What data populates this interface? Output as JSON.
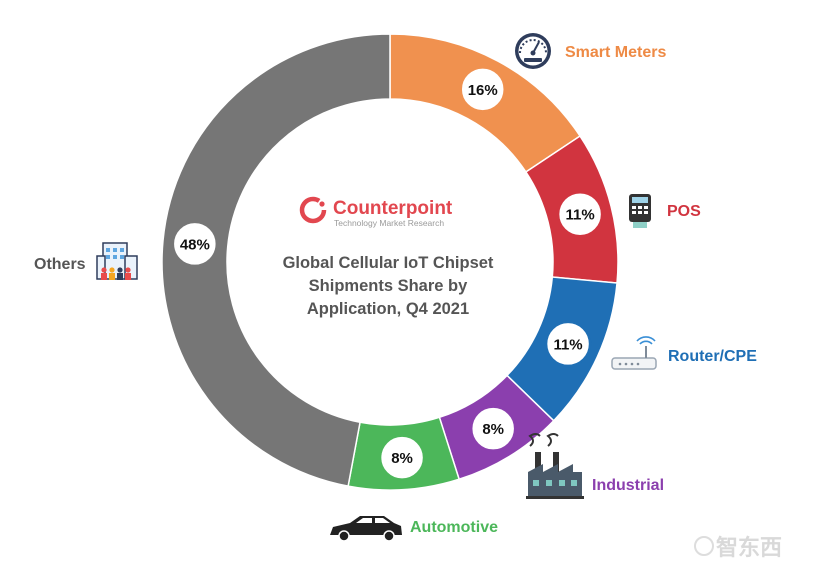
{
  "brand": {
    "name": "Counterpoint",
    "tagline": "Technology Market Research"
  },
  "watermark": {
    "text": "智东西"
  },
  "chart_data": {
    "type": "pie",
    "variant": "donut",
    "title": "Global Cellular IoT Chipset Shipments Share by Application, Q4 2021",
    "title_lines": [
      "Global Cellular IoT Chipset",
      "Shipments Share by",
      "Application, Q4 2021"
    ],
    "slices": [
      {
        "label": "Smart Meters",
        "value": 16,
        "value_label": "16%",
        "color": "#f0914f",
        "label_color": "#ee8a45",
        "icon": "speedometer-icon"
      },
      {
        "label": "POS",
        "value": 11,
        "value_label": "11%",
        "color": "#d1343f",
        "label_color": "#d1343f",
        "icon": "pos-terminal-icon"
      },
      {
        "label": "Router/CPE",
        "value": 11,
        "value_label": "11%",
        "color": "#1f6fb5",
        "label_color": "#1f6fb5",
        "icon": "router-icon"
      },
      {
        "label": "Industrial",
        "value": 8,
        "value_label": "8%",
        "color": "#8b3fae",
        "label_color": "#8b3fae",
        "icon": "factory-icon"
      },
      {
        "label": "Automotive",
        "value": 8,
        "value_label": "8%",
        "color": "#4cb75a",
        "label_color": "#4cb75a",
        "icon": "car-icon"
      },
      {
        "label": "Others",
        "value": 48,
        "value_label": "48%",
        "color": "#767676",
        "label_color": "#555555",
        "icon": "building-icon"
      }
    ]
  }
}
